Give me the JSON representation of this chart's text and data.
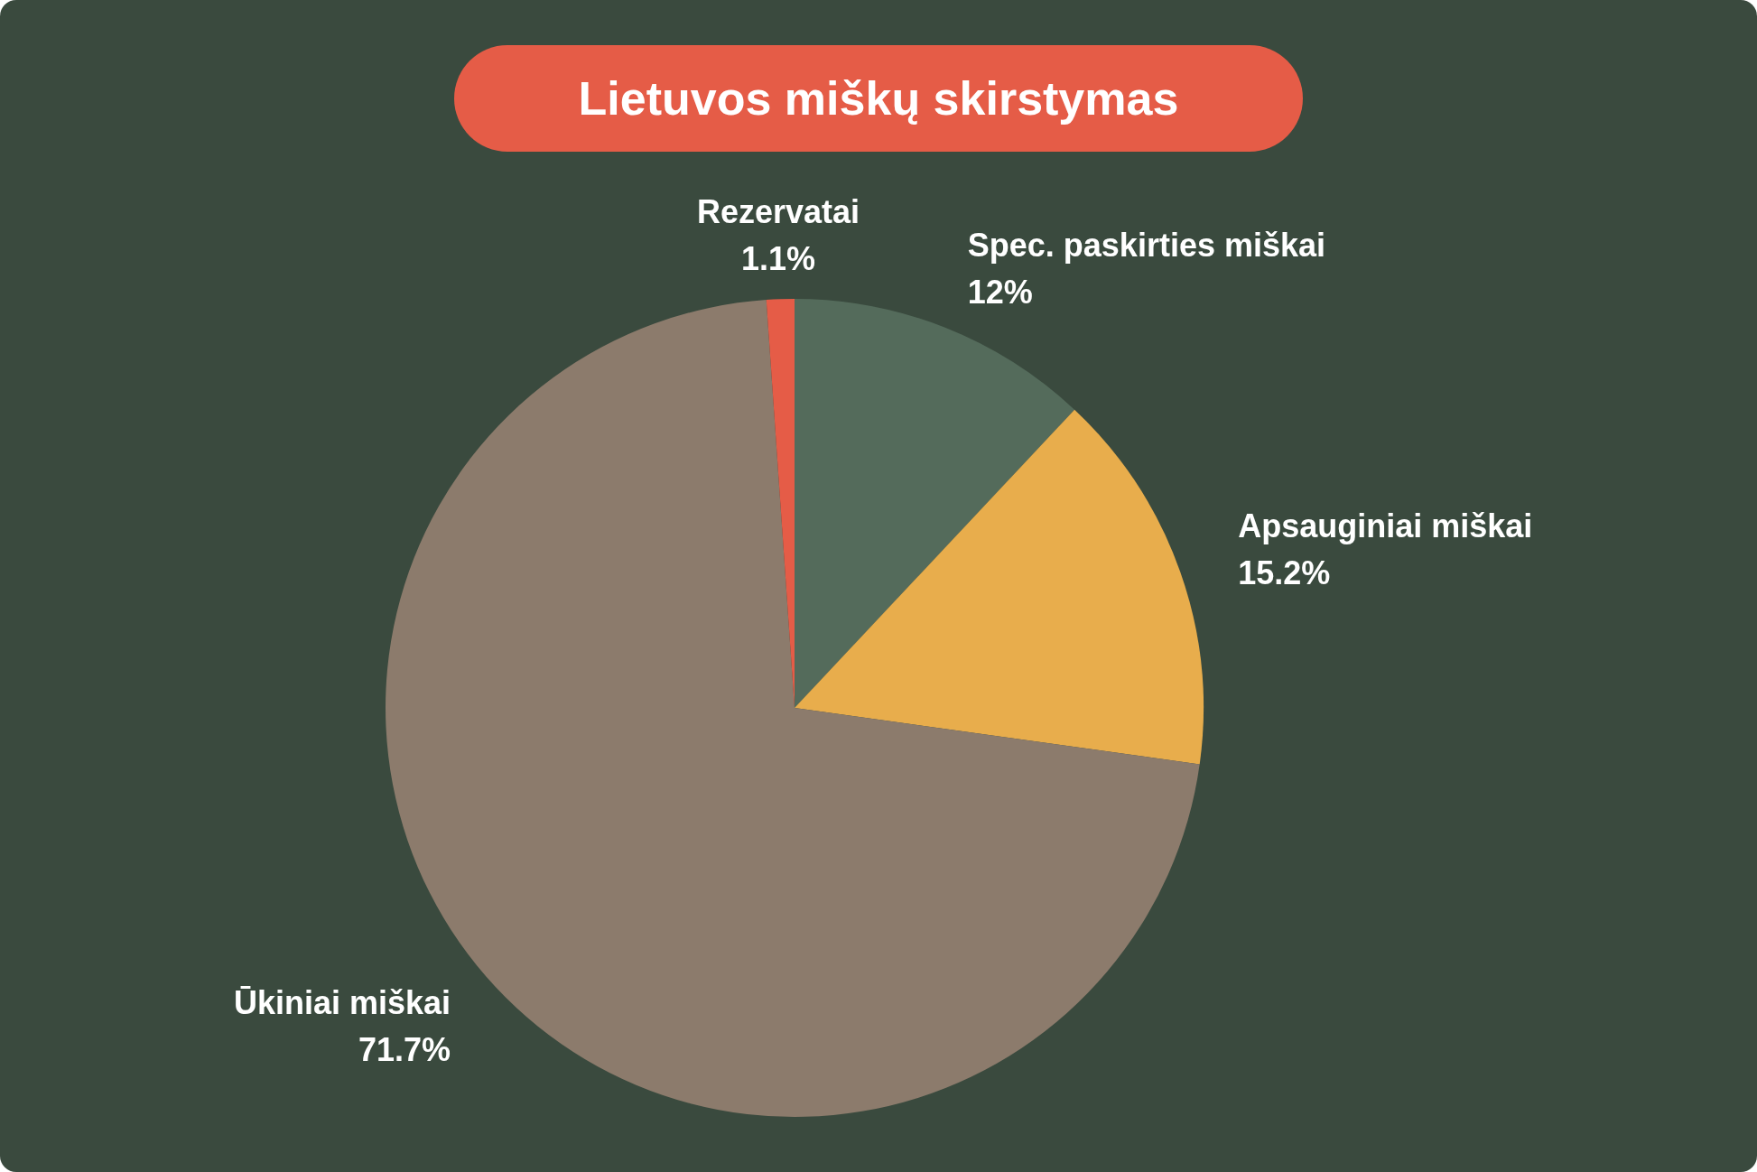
{
  "chart_data": {
    "type": "pie",
    "title": "Lietuvos miškų skirstymas",
    "categories": [
      "Spec. paskirties miškai",
      "Apsauginiai miškai",
      "Ūkiniai miškai",
      "Rezervatai"
    ],
    "values": [
      12,
      15.2,
      71.7,
      1.1
    ],
    "colors": [
      "#546b5b",
      "#e8ad4c",
      "#8c7b6c",
      "#e55c47"
    ],
    "value_labels": [
      "12%",
      "15.2%",
      "71.7%",
      "1.1%"
    ],
    "legend": false
  }
}
